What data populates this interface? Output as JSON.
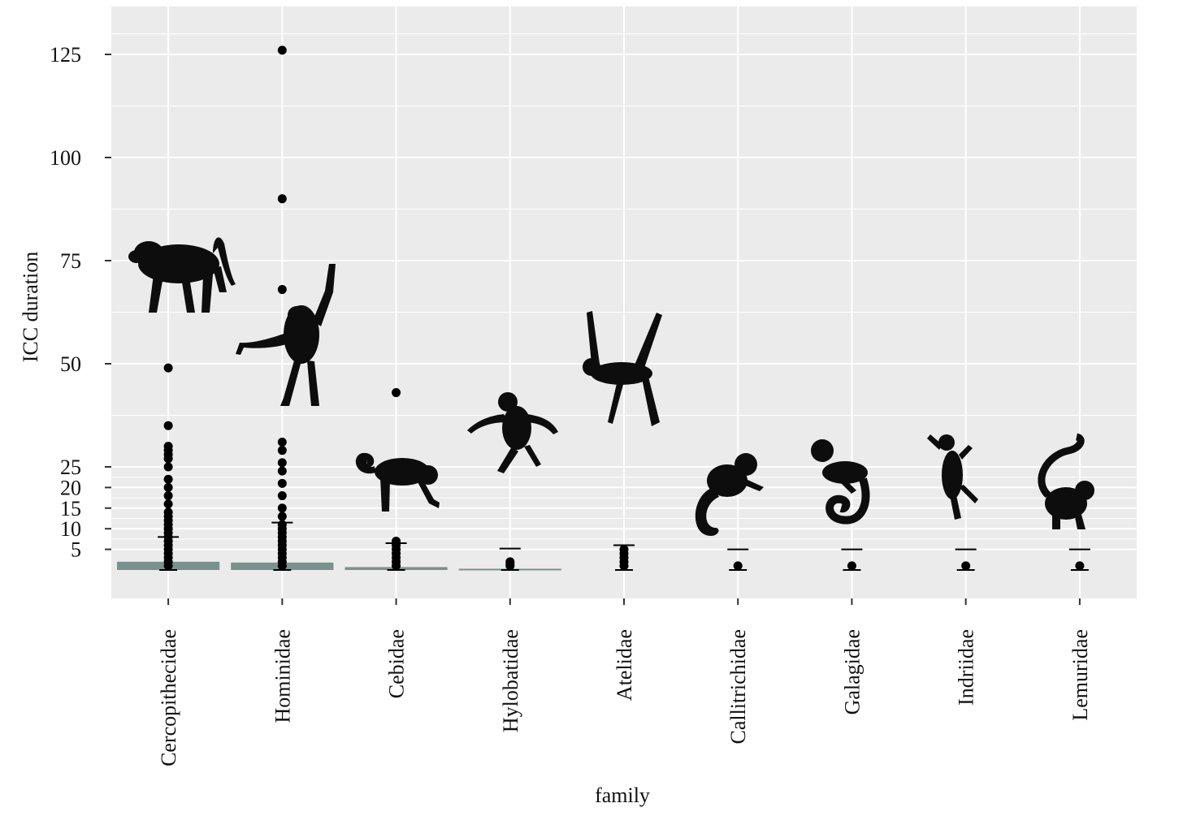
{
  "chart_data": {
    "type": "bar",
    "xlabel": "family",
    "ylabel": "ICC duration",
    "categories": [
      "Cercopithecidae",
      "Hominidae",
      "Cebidae",
      "Hylobatidae",
      "Atelidae",
      "Callitrichidae",
      "Galagidae",
      "Indriidae",
      "Lemuridae"
    ],
    "yticks": [
      5,
      10,
      15,
      20,
      25,
      50,
      75,
      100,
      125
    ],
    "ylim": [
      0,
      135
    ],
    "grid": true,
    "bar_values": [
      2.0,
      1.8,
      0.7,
      0.3,
      0.0,
      0.0,
      0.0,
      0.0,
      0.0
    ],
    "means": [
      8.0,
      11.5,
      6.5,
      5.2,
      6.0,
      5.0,
      5.0,
      5.0,
      5.0
    ],
    "points": [
      [
        49,
        35,
        30,
        29,
        28,
        27,
        25,
        22,
        20,
        18,
        16,
        14,
        13,
        12,
        11,
        10,
        9,
        8,
        7,
        6,
        5,
        4,
        3,
        2,
        1
      ],
      [
        126,
        90,
        68,
        31,
        29,
        26,
        24,
        21,
        18,
        15,
        13,
        11,
        10,
        9,
        8,
        7,
        6,
        5,
        4,
        3,
        2,
        1
      ],
      [
        43,
        7,
        6,
        5,
        4,
        3,
        2,
        1
      ],
      [
        2,
        1.5,
        1
      ],
      [
        5,
        4,
        3,
        2,
        1
      ],
      [
        1
      ],
      [
        1
      ],
      [
        1
      ],
      [
        1
      ]
    ],
    "silhouettes": [
      "baboon",
      "orangutan",
      "capuchin",
      "gibbon",
      "spider-monkey",
      "marmoset",
      "galago",
      "sifaka",
      "ring-tailed-lemur"
    ],
    "colors": {
      "panel": "#ebebeb",
      "grid": "#ffffff",
      "bar": "#7a918d",
      "point": "#000000",
      "silhouette": "#0d0d0d"
    }
  }
}
